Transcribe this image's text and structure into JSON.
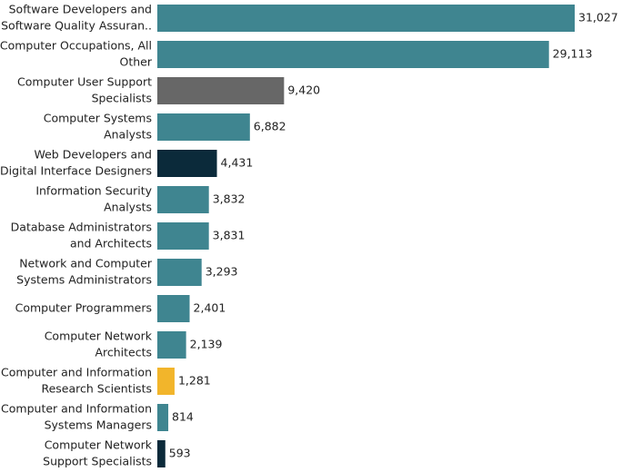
{
  "chart_data": {
    "type": "bar",
    "orientation": "horizontal",
    "title": "",
    "xlabel": "",
    "ylabel": "",
    "grid": false,
    "legend": "none",
    "xlim": [
      0,
      31027
    ],
    "bars": [
      {
        "label": [
          "Software Developers and",
          "Software Quality Assuran.."
        ],
        "value": 31027,
        "value_label": "31,027",
        "color": "#3f8590"
      },
      {
        "label": [
          "Computer Occupations, All",
          "Other"
        ],
        "value": 29113,
        "value_label": "29,113",
        "color": "#3f8590"
      },
      {
        "label": [
          "Computer User Support",
          "Specialists"
        ],
        "value": 9420,
        "value_label": "9,420",
        "color": "#676767"
      },
      {
        "label": [
          "Computer Systems",
          "Analysts"
        ],
        "value": 6882,
        "value_label": "6,882",
        "color": "#3f8590"
      },
      {
        "label": [
          "Web Developers and",
          "Digital Interface Designers"
        ],
        "value": 4431,
        "value_label": "4,431",
        "color": "#0b2a3a"
      },
      {
        "label": [
          "Information Security",
          "Analysts"
        ],
        "value": 3832,
        "value_label": "3,832",
        "color": "#3f8590"
      },
      {
        "label": [
          "Database Administrators",
          "and Architects"
        ],
        "value": 3831,
        "value_label": "3,831",
        "color": "#3f8590"
      },
      {
        "label": [
          "Network and Computer",
          "Systems Administrators"
        ],
        "value": 3293,
        "value_label": "3,293",
        "color": "#3f8590"
      },
      {
        "label": [
          "Computer Programmers"
        ],
        "value": 2401,
        "value_label": "2,401",
        "color": "#3f8590"
      },
      {
        "label": [
          "Computer Network",
          "Architects"
        ],
        "value": 2139,
        "value_label": "2,139",
        "color": "#3f8590"
      },
      {
        "label": [
          "Computer and Information",
          "Research Scientists"
        ],
        "value": 1281,
        "value_label": "1,281",
        "color": "#f2b52b"
      },
      {
        "label": [
          "Computer and Information",
          "Systems Managers"
        ],
        "value": 814,
        "value_label": "814",
        "color": "#3f8590"
      },
      {
        "label": [
          "Computer Network",
          "Support Specialists"
        ],
        "value": 593,
        "value_label": "593",
        "color": "#0b2a3a"
      }
    ]
  }
}
